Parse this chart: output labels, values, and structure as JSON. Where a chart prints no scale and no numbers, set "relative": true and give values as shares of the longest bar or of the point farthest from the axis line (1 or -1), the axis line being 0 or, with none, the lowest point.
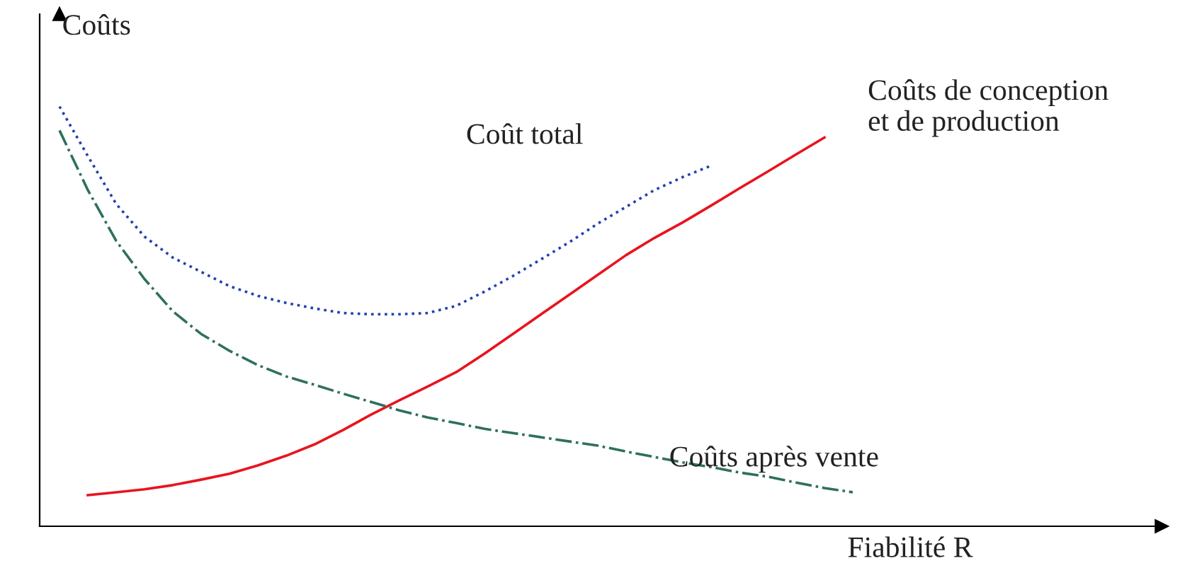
{
  "chart_data": {
    "type": "line",
    "relative": true,
    "xlabel": "Fiabilité R",
    "ylabel": "Coûts",
    "grid": false,
    "legend": false,
    "marker": "none",
    "categories": [
      null,
      null,
      null,
      null,
      null,
      null,
      null,
      null,
      null,
      null,
      null,
      null,
      null,
      null,
      null,
      null,
      null,
      null,
      null,
      null,
      null,
      null,
      null,
      null,
      null,
      null,
      null,
      null,
      null
    ],
    "series": [
      {
        "name": "Coûts de conception\net de production",
        "color": "#e8141e",
        "line_style": "solid",
        "values": [
          null,
          0.074,
          0.081,
          0.088,
          0.098,
          0.111,
          0.125,
          0.145,
          0.168,
          0.195,
          0.229,
          0.266,
          0.3,
          0.333,
          0.367,
          0.411,
          0.458,
          0.505,
          0.552,
          0.599,
          0.646,
          0.687,
          0.724,
          0.764,
          0.805,
          0.845,
          0.886,
          0.926,
          null
        ]
      },
      {
        "name": "Coût total",
        "color": "#2340b0",
        "line_style": "dotted",
        "values": [
          1.0,
          0.882,
          0.768,
          0.69,
          0.64,
          0.606,
          0.572,
          0.549,
          0.532,
          0.519,
          0.508,
          0.505,
          0.505,
          0.508,
          0.525,
          0.559,
          0.596,
          0.636,
          0.677,
          0.721,
          0.761,
          0.801,
          0.832,
          0.859,
          null,
          null,
          null,
          null,
          null
        ]
      },
      {
        "name": "Coûts après vente",
        "color": "#2e7060",
        "line_style": "dashdot",
        "values": [
          0.943,
          0.801,
          0.68,
          0.589,
          0.512,
          0.458,
          0.418,
          0.384,
          0.357,
          0.337,
          0.316,
          0.296,
          0.276,
          0.259,
          0.246,
          0.232,
          0.222,
          0.212,
          0.202,
          0.192,
          0.178,
          0.165,
          0.152,
          0.141,
          0.128,
          0.118,
          0.104,
          0.091,
          0.081
        ]
      }
    ]
  }
}
